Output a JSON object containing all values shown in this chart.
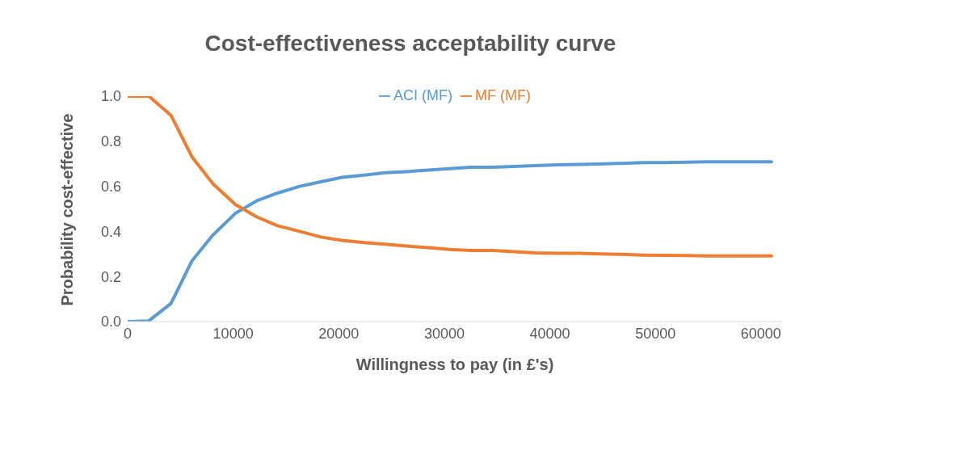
{
  "chart_data": {
    "type": "line",
    "title": "Cost-effectiveness acceptability curve",
    "xlabel": "Willingness to pay (in £'s)",
    "ylabel": "Probability cost-effective",
    "x": [
      0,
      2000,
      4100,
      6100,
      8100,
      10200,
      12200,
      14200,
      16300,
      18300,
      20300,
      22400,
      24400,
      26400,
      28500,
      30500,
      32500,
      34600,
      36600,
      38600,
      40700,
      42700,
      44700,
      46800,
      48800,
      50800,
      52900,
      54900,
      56900,
      59000,
      61000
    ],
    "series": [
      {
        "name": "ACI (MF)",
        "color": "#5b9bd5",
        "values": [
          0.0,
          0.003,
          0.08,
          0.27,
          0.385,
          0.48,
          0.535,
          0.57,
          0.6,
          0.62,
          0.64,
          0.65,
          0.66,
          0.665,
          0.672,
          0.678,
          0.685,
          0.685,
          0.688,
          0.692,
          0.695,
          0.697,
          0.699,
          0.702,
          0.705,
          0.705,
          0.707,
          0.709,
          0.709,
          0.709,
          0.709
        ]
      },
      {
        "name": "MF (MF)",
        "color": "#ed7d31",
        "values": [
          1.0,
          1.0,
          0.915,
          0.73,
          0.61,
          0.52,
          0.465,
          0.425,
          0.4,
          0.375,
          0.36,
          0.35,
          0.343,
          0.335,
          0.328,
          0.32,
          0.315,
          0.315,
          0.31,
          0.305,
          0.303,
          0.303,
          0.3,
          0.298,
          0.295,
          0.294,
          0.293,
          0.291,
          0.291,
          0.291,
          0.291
        ]
      }
    ],
    "xlim": [
      0,
      62000
    ],
    "xticks": [
      0,
      10000,
      20000,
      30000,
      40000,
      50000,
      60000
    ],
    "ylim": [
      0,
      1
    ],
    "yticks": [
      {
        "value": 0,
        "label": "0.0"
      },
      {
        "value": 0.2,
        "label": "0.2"
      },
      {
        "value": 0.4,
        "label": "0.4"
      },
      {
        "value": 0.6,
        "label": "0.6"
      },
      {
        "value": 0.8,
        "label": "0.8"
      },
      {
        "value": 1,
        "label": "1.0"
      }
    ],
    "grid": false,
    "legend": "top",
    "marker": "none",
    "line_style": "solid"
  }
}
